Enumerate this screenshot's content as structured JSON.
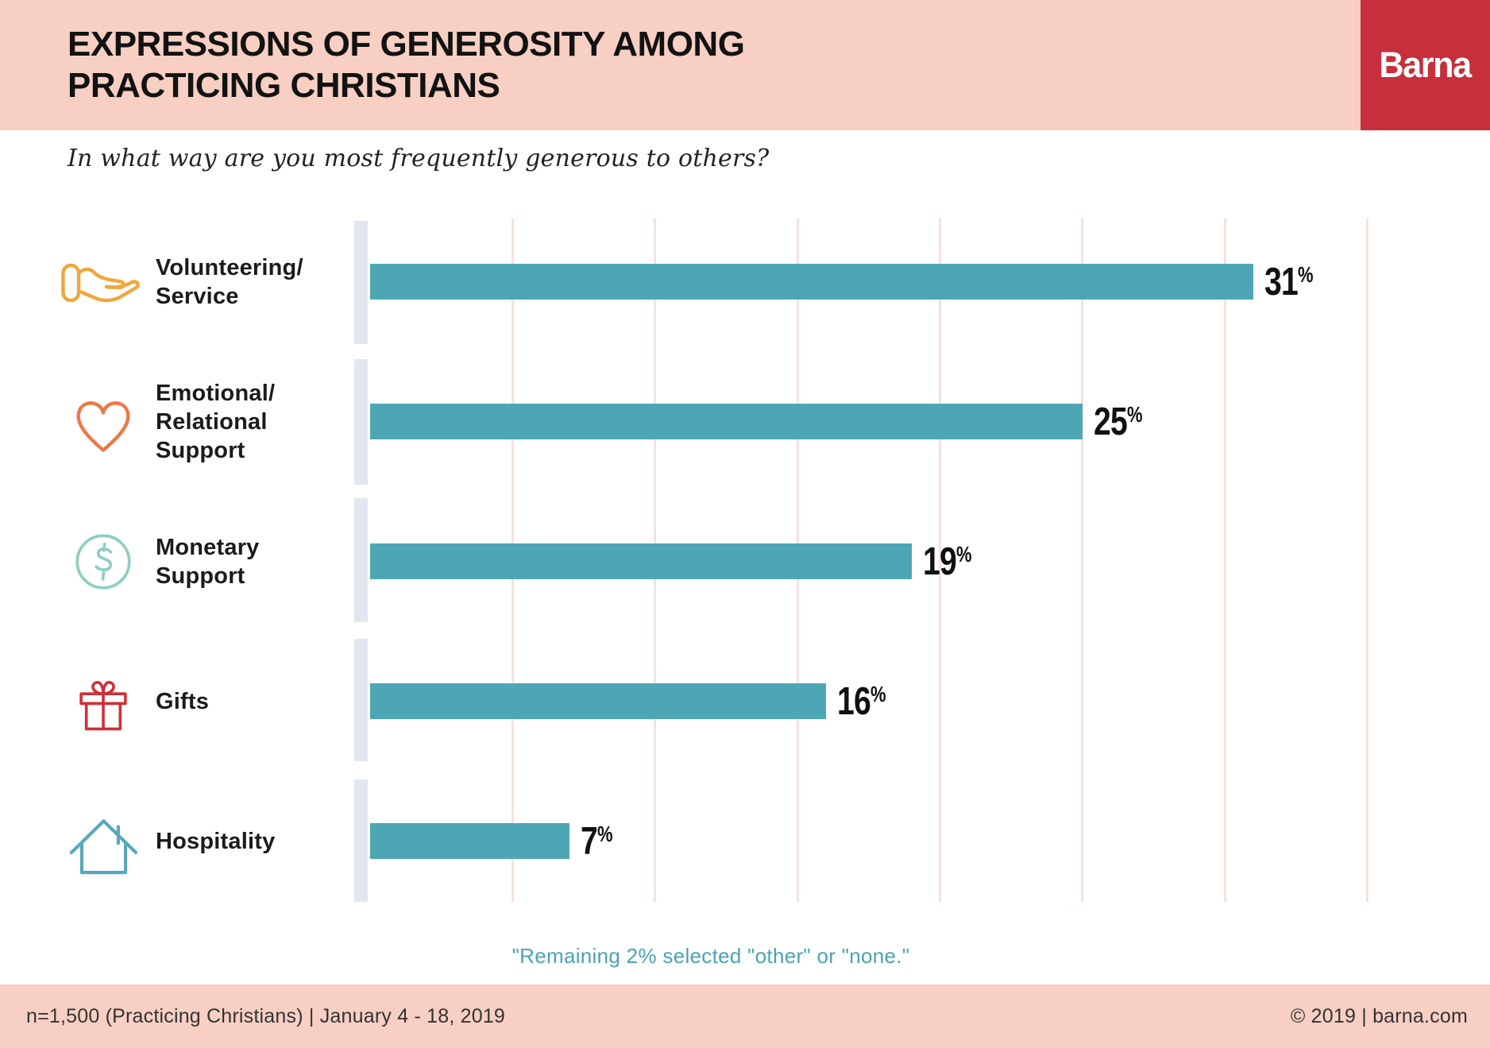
{
  "header": {
    "title": "EXPRESSIONS OF GENEROSITY AMONG\nPRACTICING CHRISTIANS",
    "logo_text": "Barna"
  },
  "chart_data": {
    "type": "bar",
    "orientation": "horizontal",
    "title": "Expressions of Generosity Among Practicing Christians",
    "question": "In what way are you most frequently generous to others?",
    "unit": "%",
    "xlim": [
      0,
      35
    ],
    "gridline_interval": 5,
    "grid": true,
    "categories": [
      "Volunteering/Service",
      "Emotional/Relational Support",
      "Monetary Support",
      "Gifts",
      "Hospitality"
    ],
    "values": [
      31,
      25,
      19,
      16,
      7
    ],
    "rows": [
      {
        "id": "volunteering-service",
        "label_lines": [
          "Volunteering/",
          "Service"
        ],
        "value": 31,
        "display": "31%",
        "icon": "giving-hand-icon",
        "icon_color": "#f0a73c"
      },
      {
        "id": "emotional-relational-support",
        "label_lines": [
          "Emotional/",
          "Relational",
          "Support"
        ],
        "value": 25,
        "display": "25%",
        "icon": "heart-icon",
        "icon_color": "#ed7846"
      },
      {
        "id": "monetary-support",
        "label_lines": [
          "Monetary",
          "Support"
        ],
        "value": 19,
        "display": "19%",
        "icon": "dollar-circle-icon",
        "icon_color": "#8ecec3"
      },
      {
        "id": "gifts",
        "label_lines": [
          "Gifts"
        ],
        "value": 16,
        "display": "16%",
        "icon": "gift-icon",
        "icon_color": "#d02f38"
      },
      {
        "id": "hospitality",
        "label_lines": [
          "Hospitality"
        ],
        "value": 7,
        "display": "7%",
        "icon": "house-icon",
        "icon_color": "#57a8bb"
      }
    ],
    "note": "\"Remaining 2% selected \"other\" or \"none.\""
  },
  "footer": {
    "left": "n=1,500 (Practicing Christians)  |  January 4 - 18, 2019",
    "right": "© 2019 | barna.com"
  },
  "colors": {
    "bar": "#4da6b4",
    "header_bg": "#f8cfc3",
    "footer_bg": "#f8cfc3",
    "logo_bg": "#c62f3b",
    "gridline": "#f6e3dc",
    "axis_strip": "#e2e6ef",
    "note_text": "#4aa3b6"
  }
}
